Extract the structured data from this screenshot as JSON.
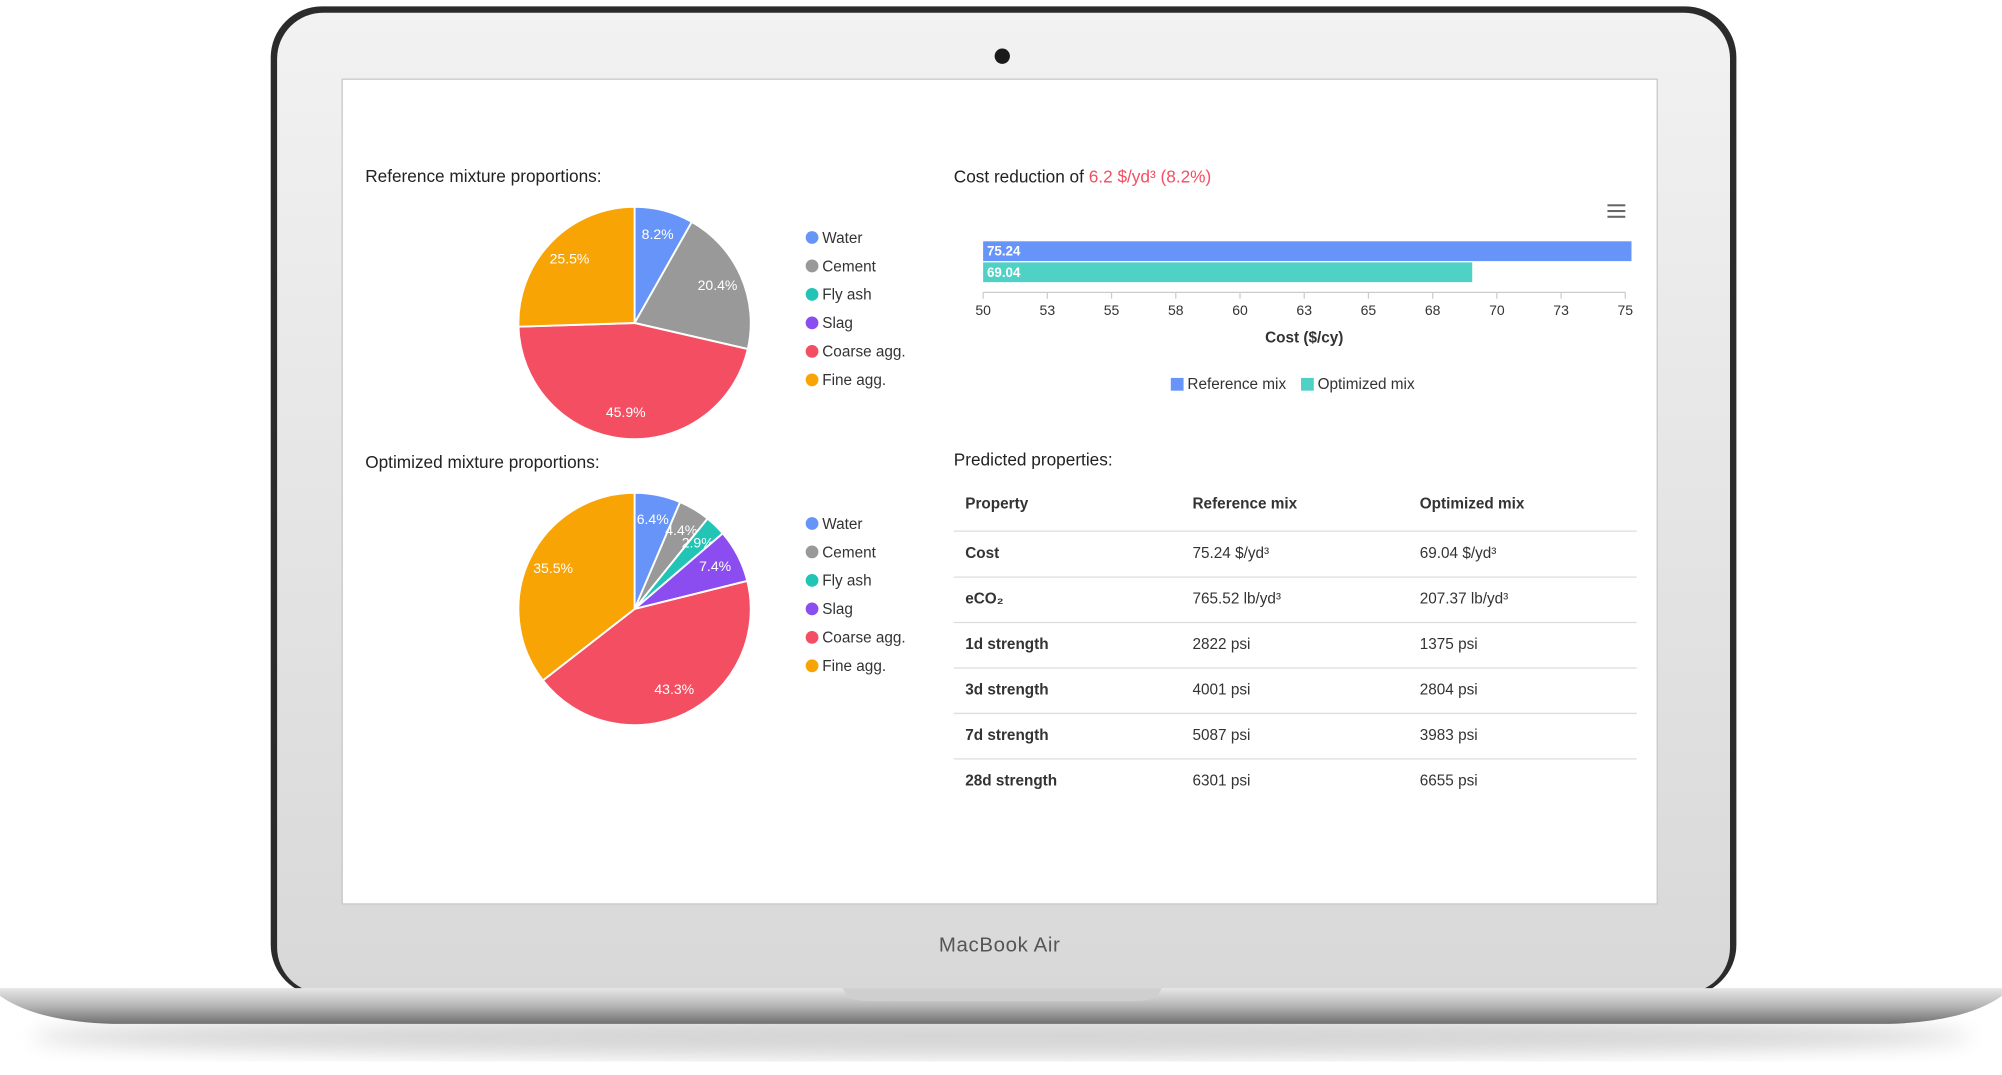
{
  "device_label": "MacBook Air",
  "chart_data": [
    {
      "type": "pie",
      "title": "Reference mixture proportions:",
      "categories": [
        "Water",
        "Cement",
        "Fly ash",
        "Slag",
        "Coarse agg.",
        "Fine agg."
      ],
      "values": [
        8.2,
        20.4,
        0,
        0,
        45.9,
        25.5
      ],
      "value_labels": [
        "8.2%",
        "20.4%",
        null,
        null,
        "45.9%",
        "25.5%"
      ],
      "colors": [
        "#6794f8",
        "#999999",
        "#22c5b5",
        "#8b4cf0",
        "#f44e62",
        "#f9a405"
      ]
    },
    {
      "type": "pie",
      "title": "Optimized mixture proportions:",
      "categories": [
        "Water",
        "Cement",
        "Fly ash",
        "Slag",
        "Coarse agg.",
        "Fine agg."
      ],
      "values": [
        6.4,
        4.4,
        2.9,
        7.4,
        43.3,
        35.5
      ],
      "value_labels": [
        "6.4%",
        "4.4%",
        "2.9%",
        "7.4%",
        "43.3%",
        "35.5%"
      ],
      "colors": [
        "#6794f8",
        "#999999",
        "#22c5b5",
        "#8b4cf0",
        "#f44e62",
        "#f9a405"
      ]
    },
    {
      "type": "bar",
      "orientation": "horizontal",
      "title": "Cost reduction of",
      "title_highlight": "6.2 $/yd³ (8.2%)",
      "categories": [
        null
      ],
      "series": [
        {
          "name": "Reference mix",
          "color": "#6794f8",
          "values": [
            75.24
          ]
        },
        {
          "name": "Optimized mix",
          "color": "#4fd1c5",
          "values": [
            69.04
          ]
        }
      ],
      "xlim": [
        50,
        75
      ],
      "xticks": [
        50,
        {
          "value": 52.5,
          "label": "53"
        },
        55,
        {
          "value": 57.5,
          "label": "58"
        },
        60,
        {
          "value": 62.5,
          "label": "63"
        },
        65,
        {
          "value": 67.5,
          "label": "68"
        },
        70,
        {
          "value": 72.5,
          "label": "73"
        },
        75
      ],
      "xlabel": "Cost ($/cy)",
      "legend": "bottom"
    }
  ],
  "table": {
    "title": "Predicted properties:",
    "header": [
      "Property",
      "Reference mix",
      "Optimized mix"
    ],
    "rows": [
      [
        "Cost",
        "75.24 $/yd³",
        "69.04 $/yd³"
      ],
      [
        "eCO₂",
        "765.52 lb/yd³",
        "207.37 lb/yd³"
      ],
      [
        "1d strength",
        "2822 psi",
        "1375 psi"
      ],
      [
        "3d strength",
        "4001 psi",
        "2804 psi"
      ],
      [
        "7d strength",
        "5087 psi",
        "3983 psi"
      ],
      [
        "28d strength",
        "6301 psi",
        "6655 psi"
      ]
    ]
  }
}
